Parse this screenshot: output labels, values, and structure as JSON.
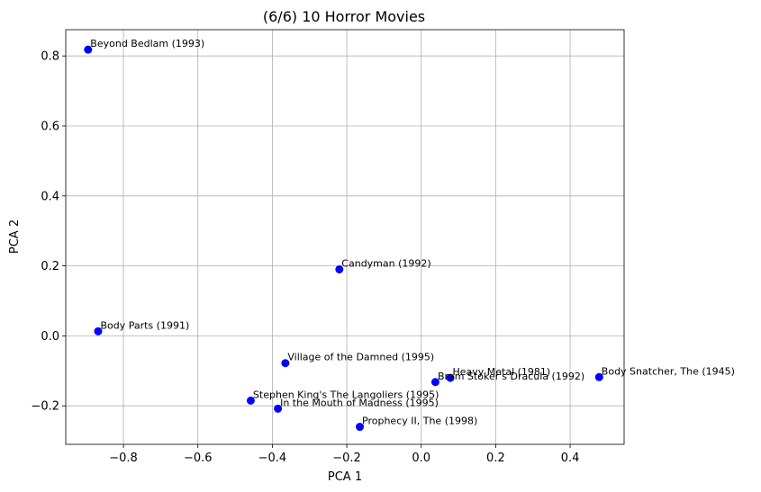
{
  "chart_data": {
    "type": "scatter",
    "title": "(6/6) 10 Horror Movies",
    "xlabel": "PCA 1",
    "ylabel": "PCA 2",
    "xlim": [
      -0.955,
      0.545
    ],
    "ylim": [
      -0.31,
      0.875
    ],
    "xticks": [
      -0.8,
      -0.6,
      -0.4,
      -0.2,
      0.0,
      0.2,
      0.4
    ],
    "xtick_labels": [
      "−0.8",
      "−0.6",
      "−0.4",
      "−0.2",
      "0.0",
      "0.2",
      "0.4"
    ],
    "yticks": [
      -0.2,
      0.0,
      0.2,
      0.4,
      0.6,
      0.8
    ],
    "ytick_labels": [
      "−0.2",
      "0.0",
      "0.2",
      "0.4",
      "0.6",
      "0.8"
    ],
    "grid": true,
    "marker_color": "#0000ff",
    "points": [
      {
        "label": "Beyond Bedlam (1993)",
        "x": -0.895,
        "y": 0.818
      },
      {
        "label": "Candyman (1992)",
        "x": -0.22,
        "y": 0.19
      },
      {
        "label": "Body Parts (1991)",
        "x": -0.868,
        "y": 0.013
      },
      {
        "label": "Village of the Damned (1995)",
        "x": -0.365,
        "y": -0.078
      },
      {
        "label": "Heavy Metal (1981)",
        "x": 0.078,
        "y": -0.12
      },
      {
        "label": "Bram Stoker's Dracula (1992)",
        "x": 0.038,
        "y": -0.132
      },
      {
        "label": "Body Snatcher, The (1945)",
        "x": 0.478,
        "y": -0.118
      },
      {
        "label": "Stephen King's The Langoliers (1995)",
        "x": -0.458,
        "y": -0.185
      },
      {
        "label": "In the Mouth of Madness (1995)",
        "x": -0.385,
        "y": -0.208
      },
      {
        "label": "Prophecy II, The (1998)",
        "x": -0.165,
        "y": -0.26
      }
    ]
  }
}
